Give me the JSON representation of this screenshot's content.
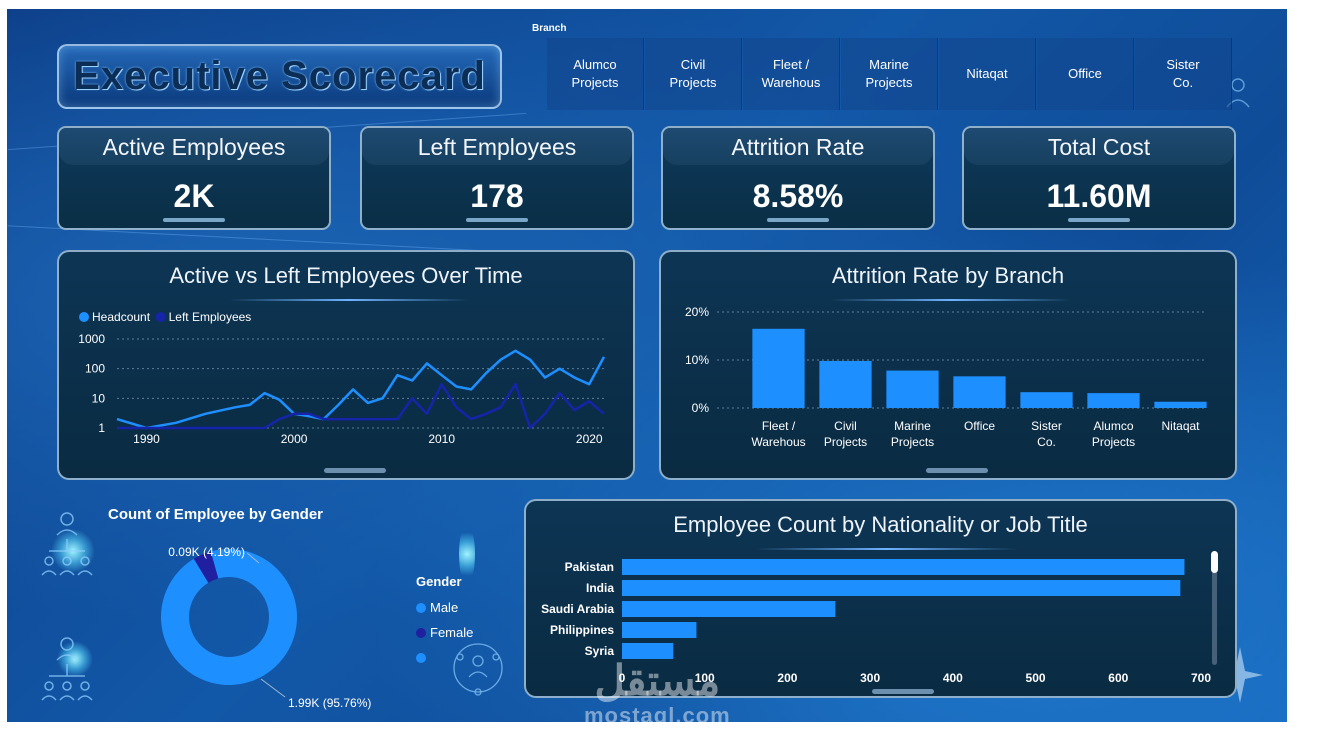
{
  "header": {
    "title": "Executive Scorecard"
  },
  "slicer": {
    "label": "Branch",
    "options": [
      "Alumco Projects",
      "Civil Projects",
      "Fleet / Warehous",
      "Marine Projects",
      "Nitaqat",
      "Office",
      "Sister Co."
    ]
  },
  "kpis": [
    {
      "label": "Active Employees",
      "value": "2K"
    },
    {
      "label": "Left Employees",
      "value": "178"
    },
    {
      "label": "Attrition Rate",
      "value": "8.58%"
    },
    {
      "label": "Total Cost",
      "value": "11.60M"
    }
  ],
  "panels": {
    "line_title": "Active vs Left Employees Over Time",
    "branch_title": "Attrition Rate by Branch",
    "gender_title": "Count of Employee by Gender",
    "nationality_title": "Employee Count by Nationality or Job Title"
  },
  "gender_legend": {
    "title": "Gender",
    "items": [
      "Male",
      "Female",
      ""
    ]
  },
  "watermark": {
    "arabic": "مستقل",
    "latin": "mostaql.com"
  },
  "colors": {
    "headcount": "#1e8fff",
    "left": "#1524a8",
    "bar": "#1e8fff",
    "male": "#1e8fff",
    "female": "#1f1fa0"
  },
  "chart_data": [
    {
      "type": "line",
      "title": "Active vs Left Employees Over Time",
      "yscale": "log",
      "ylim": [
        1,
        1000
      ],
      "yticks": [
        "1",
        "10",
        "100",
        "1000"
      ],
      "xticks": [
        "1990",
        "2000",
        "2010",
        "2020"
      ],
      "legend": "top-left",
      "grid": true,
      "x": [
        1988,
        1990,
        1992,
        1994,
        1996,
        1997,
        1998,
        1999,
        2000,
        2001,
        2002,
        2003,
        2004,
        2005,
        2006,
        2007,
        2008,
        2009,
        2010,
        2011,
        2012,
        2013,
        2014,
        2015,
        2016,
        2017,
        2018,
        2019,
        2020,
        2021
      ],
      "series": [
        {
          "name": "Headcount",
          "values": [
            2,
            1,
            1.5,
            3,
            5,
            6,
            15,
            9,
            3,
            2.5,
            2,
            6,
            20,
            7,
            10,
            60,
            40,
            150,
            60,
            25,
            20,
            70,
            200,
            400,
            200,
            50,
            100,
            50,
            30,
            250
          ]
        },
        {
          "name": "Left Employees",
          "values": [
            1,
            1,
            1,
            1,
            1,
            1,
            1,
            2,
            3,
            3,
            2,
            2,
            2,
            2,
            2,
            2,
            10,
            3,
            30,
            5,
            2,
            3,
            5,
            30,
            1,
            3,
            15,
            4,
            8,
            3
          ]
        }
      ]
    },
    {
      "type": "bar",
      "title": "Attrition Rate by Branch",
      "categories": [
        "Fleet / Warehous",
        "Civil Projects",
        "Marine Projects",
        "Office",
        "Sister Co.",
        "Alumco Projects",
        "Nitaqat"
      ],
      "values": [
        16.5,
        9.8,
        7.8,
        6.6,
        3.3,
        3.1,
        1.3
      ],
      "yticks": [
        "0%",
        "10%",
        "20%"
      ],
      "ylim": [
        0,
        20
      ],
      "grid": true
    },
    {
      "type": "pie",
      "title": "Count of Employee by Gender",
      "series": [
        {
          "name": "Male",
          "value": 1.99,
          "label": "1.99K (95.76%)"
        },
        {
          "name": "Female",
          "value": 0.09,
          "label": "0.09K (4.19%)"
        }
      ]
    },
    {
      "type": "bar",
      "orientation": "horizontal",
      "title": "Employee Count by Nationality or Job Title",
      "categories": [
        "Pakistan",
        "India",
        "Saudi Arabia",
        "Philippines",
        "Syria"
      ],
      "values": [
        680,
        675,
        258,
        90,
        62
      ],
      "xlim": [
        0,
        700
      ],
      "xticks": [
        "0",
        "100",
        "200",
        "300",
        "400",
        "500",
        "600",
        "700"
      ]
    }
  ]
}
